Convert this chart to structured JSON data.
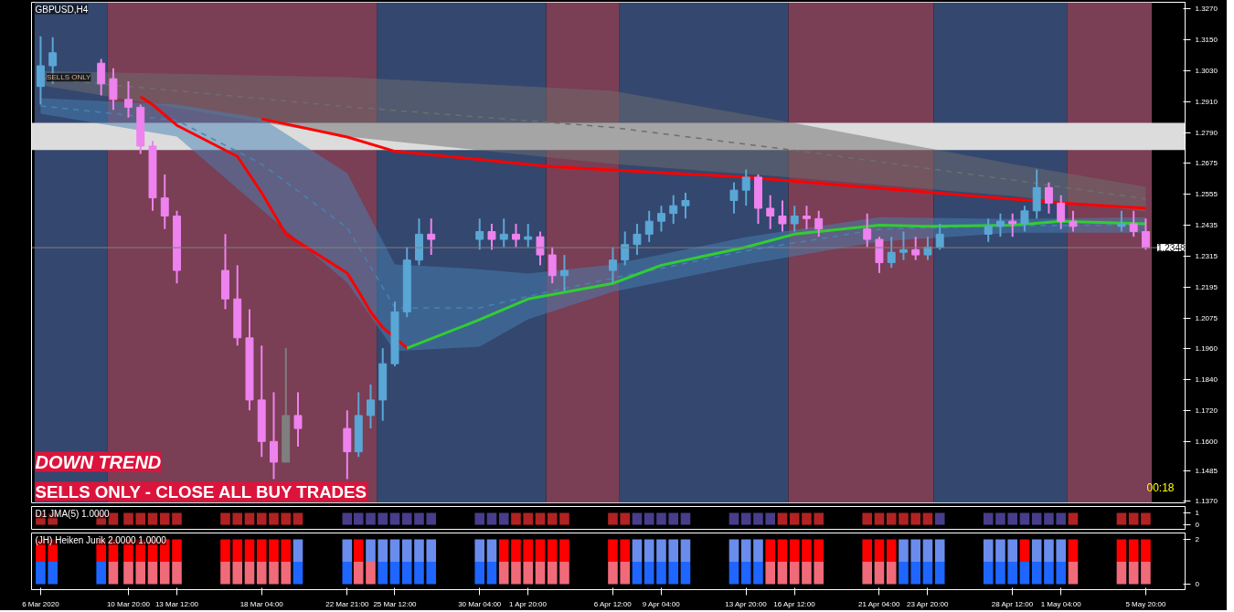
{
  "chart_data": [
    {
      "type": "candlestick",
      "title": "GBPUSD,H4",
      "x": [
        "2020-03-06T00:00",
        "2020-03-06T16:00",
        "2020-03-09T08:00",
        "2020-03-10T00:00",
        "2020-03-10T20:00",
        "2020-03-11T12:00",
        "2020-03-12T04:00",
        "2020-03-12T20:00",
        "2020-03-13T12:00",
        "2020-03-16T04:00",
        "2020-03-16T20:00",
        "2020-03-17T12:00",
        "2020-03-18T04:00",
        "2020-03-18T20:00",
        "2020-03-19T12:00",
        "2020-03-20T04:00",
        "2020-03-22T21:00",
        "2020-03-23T12:00",
        "2020-03-24T04:00",
        "2020-03-24T20:00",
        "2020-03-25T12:00",
        "2020-03-26T04:00",
        "2020-03-26T20:00",
        "2020-03-27T12:00",
        "2020-03-30T04:00",
        "2020-03-30T20:00",
        "2020-03-31T12:00",
        "2020-04-01T04:00",
        "2020-04-01T20:00",
        "2020-04-02T12:00",
        "2020-04-03T04:00",
        "2020-04-03T20:00",
        "2020-04-06T12:00",
        "2020-04-07T04:00",
        "2020-04-07T20:00",
        "2020-04-08T12:00",
        "2020-04-09T04:00",
        "2020-04-09T20:00",
        "2020-04-10T12:00",
        "2020-04-13T04:00",
        "2020-04-13T20:00",
        "2020-04-14T12:00",
        "2020-04-15T04:00",
        "2020-04-15T20:00",
        "2020-04-16T12:00",
        "2020-04-17T04:00",
        "2020-04-17T20:00",
        "2020-04-20T12:00",
        "2020-04-21T04:00",
        "2020-04-21T20:00",
        "2020-04-22T12:00",
        "2020-04-23T04:00",
        "2020-04-23T20:00",
        "2020-04-24T12:00",
        "2020-04-27T04:00",
        "2020-04-27T20:00",
        "2020-04-28T12:00",
        "2020-04-29T04:00",
        "2020-04-29T20:00",
        "2020-04-30T12:00",
        "2020-05-01T04:00",
        "2020-05-01T20:00",
        "2020-05-04T12:00",
        "2020-05-05T04:00",
        "2020-05-05T20:00"
      ],
      "ohlc": [
        [
          1.297,
          1.3164,
          1.29,
          1.305
        ],
        [
          1.305,
          1.316,
          1.298,
          1.31
        ],
        [
          1.306,
          1.3076,
          1.2935,
          1.298
        ],
        [
          1.3,
          1.304,
          1.288,
          1.292
        ],
        [
          1.292,
          1.299,
          1.285,
          1.289
        ],
        [
          1.289,
          1.29,
          1.271,
          1.274
        ],
        [
          1.274,
          1.276,
          1.249,
          1.254
        ],
        [
          1.254,
          1.263,
          1.242,
          1.247
        ],
        [
          1.247,
          1.249,
          1.221,
          1.226
        ],
        [
          1.226,
          1.24,
          1.211,
          1.215
        ],
        [
          1.215,
          1.228,
          1.197,
          1.2
        ],
        [
          1.2,
          1.211,
          1.172,
          1.176
        ],
        [
          1.176,
          1.197,
          1.154,
          1.16
        ],
        [
          1.16,
          1.179,
          1.1455,
          1.152
        ],
        [
          1.152,
          1.196,
          1.152,
          1.17
        ],
        [
          1.17,
          1.179,
          1.158,
          1.165
        ],
        [
          1.165,
          1.172,
          1.1455,
          1.156
        ],
        [
          1.156,
          1.179,
          1.154,
          1.17
        ],
        [
          1.17,
          1.182,
          1.165,
          1.176
        ],
        [
          1.176,
          1.196,
          1.168,
          1.19
        ],
        [
          1.19,
          1.214,
          1.189,
          1.21
        ],
        [
          1.21,
          1.235,
          1.208,
          1.23
        ],
        [
          1.23,
          1.246,
          1.228,
          1.24
        ],
        [
          1.24,
          1.246,
          1.232,
          1.238
        ],
        [
          1.238,
          1.246,
          1.234,
          1.241
        ],
        [
          1.241,
          1.244,
          1.234,
          1.238
        ],
        [
          1.238,
          1.246,
          1.235,
          1.24
        ],
        [
          1.24,
          1.244,
          1.235,
          1.238
        ],
        [
          1.238,
          1.244,
          1.235,
          1.239
        ],
        [
          1.239,
          1.241,
          1.228,
          1.232
        ],
        [
          1.232,
          1.235,
          1.221,
          1.224
        ],
        [
          1.224,
          1.232,
          1.218,
          1.226
        ],
        [
          1.226,
          1.235,
          1.221,
          1.23
        ],
        [
          1.23,
          1.241,
          1.228,
          1.236
        ],
        [
          1.236,
          1.244,
          1.232,
          1.24
        ],
        [
          1.24,
          1.249,
          1.237,
          1.245
        ],
        [
          1.245,
          1.251,
          1.241,
          1.248
        ],
        [
          1.248,
          1.255,
          1.244,
          1.251
        ],
        [
          1.251,
          1.256,
          1.246,
          1.253
        ],
        [
          1.253,
          1.26,
          1.248,
          1.257
        ],
        [
          1.257,
          1.265,
          1.251,
          1.262
        ],
        [
          1.262,
          1.263,
          1.244,
          1.25
        ],
        [
          1.25,
          1.255,
          1.242,
          1.247
        ],
        [
          1.247,
          1.253,
          1.241,
          1.244
        ],
        [
          1.244,
          1.251,
          1.241,
          1.247
        ],
        [
          1.247,
          1.251,
          1.242,
          1.246
        ],
        [
          1.246,
          1.249,
          1.239,
          1.242
        ],
        [
          1.242,
          1.248,
          1.235,
          1.238
        ],
        [
          1.238,
          1.239,
          1.225,
          1.229
        ],
        [
          1.229,
          1.239,
          1.227,
          1.233
        ],
        [
          1.233,
          1.241,
          1.23,
          1.234
        ],
        [
          1.234,
          1.239,
          1.23,
          1.232
        ],
        [
          1.232,
          1.239,
          1.23,
          1.235
        ],
        [
          1.235,
          1.244,
          1.234,
          1.24
        ],
        [
          1.24,
          1.246,
          1.237,
          1.243
        ],
        [
          1.243,
          1.248,
          1.239,
          1.245
        ],
        [
          1.245,
          1.248,
          1.239,
          1.244
        ],
        [
          1.244,
          1.251,
          1.241,
          1.249
        ],
        [
          1.249,
          1.265,
          1.246,
          1.258
        ],
        [
          1.258,
          1.26,
          1.248,
          1.252
        ],
        [
          1.252,
          1.255,
          1.242,
          1.245
        ],
        [
          1.245,
          1.249,
          1.241,
          1.243
        ],
        [
          1.243,
          1.249,
          1.241,
          1.244
        ],
        [
          1.244,
          1.249,
          1.239,
          1.241
        ],
        [
          1.241,
          1.246,
          1.234,
          1.2348
        ]
      ],
      "colors": [
        "#5aa7d6",
        "#5aa7d6",
        "#ee82ee",
        "#ee82ee",
        "#ee82ee",
        "#ee82ee",
        "#ee82ee",
        "#ee82ee",
        "#ee82ee",
        "#ee82ee",
        "#ee82ee",
        "#ee82ee",
        "#ee82ee",
        "#ee82ee",
        "#7f7f7f",
        "#ee82ee",
        "#ee82ee",
        "#5aa7d6",
        "#5aa7d6",
        "#5aa7d6",
        "#5aa7d6",
        "#5aa7d6",
        "#5aa7d6",
        "#ee82ee",
        "#5aa7d6",
        "#ee82ee",
        "#5aa7d6",
        "#ee82ee",
        "#5aa7d6",
        "#ee82ee",
        "#ee82ee",
        "#5aa7d6",
        "#5aa7d6",
        "#5aa7d6",
        "#5aa7d6",
        "#5aa7d6",
        "#5aa7d6",
        "#5aa7d6",
        "#5aa7d6",
        "#5aa7d6",
        "#5aa7d6",
        "#ee82ee",
        "#ee82ee",
        "#ee82ee",
        "#5aa7d6",
        "#ee82ee",
        "#ee82ee",
        "#ee82ee",
        "#ee82ee",
        "#5aa7d6",
        "#5aa7d6",
        "#ee82ee",
        "#5aa7d6",
        "#5aa7d6",
        "#5aa7d6",
        "#5aa7d6",
        "#ee82ee",
        "#5aa7d6",
        "#5aa7d6",
        "#ee82ee",
        "#ee82ee",
        "#ee82ee",
        "#5aa7d6",
        "#ee82ee",
        "#ee82ee"
      ],
      "series": [
        {
          "type": "line",
          "color": "#6e6e6e",
          "line_style": "dashed",
          "x": [
            "2020-03-06T00:00",
            "2020-03-22T21:00",
            "2020-04-06T12:00",
            "2020-04-16T12:00",
            "2020-04-28T12:00",
            "2020-05-05T20:00"
          ],
          "values": [
            1.3002,
            1.2892,
            1.2812,
            1.2724,
            1.2609,
            1.2536
          ],
          "lower": [
            1.2975,
            1.2777,
            1.2671,
            1.2618,
            1.2547,
            1.2488
          ],
          "upper": [
            1.303,
            1.3006,
            1.2953,
            1.2829,
            1.2671,
            1.2583
          ]
        },
        {
          "type": "line",
          "color": "#4682b4",
          "line_style": "dashed",
          "x": [
            "2020-03-06T00:00",
            "2020-03-13T12:00",
            "2020-03-18T04:00",
            "2020-03-22T21:00",
            "2020-03-25T12:00",
            "2020-03-30T04:00",
            "2020-04-01T20:00",
            "2020-04-06T12:00",
            "2020-04-13T20:00",
            "2020-04-21T04:00",
            "2020-04-28T12:00",
            "2020-05-05T20:00"
          ],
          "values": [
            1.2895,
            1.2839,
            1.2671,
            1.2425,
            1.2116,
            1.2116,
            1.216,
            1.223,
            1.2336,
            1.2419,
            1.2433,
            1.2436
          ],
          "lower": [
            1.2865,
            1.2777,
            1.2495,
            1.2213,
            1.1948,
            1.1966,
            1.2072,
            1.2177,
            1.2283,
            1.2371,
            1.2406,
            1.2406
          ],
          "upper": [
            1.2925,
            1.29,
            1.2847,
            1.2636,
            1.2283,
            1.2265,
            1.2248,
            1.2283,
            1.2389,
            1.2466,
            1.2459,
            1.2466
          ]
        },
        {
          "type": "line",
          "color": "#ff0000",
          "line_style": "solid",
          "x": [
            "2020-03-11T12:00",
            "2020-03-12T04:00",
            "2020-03-13T12:00",
            "2020-03-16T20:00",
            "2020-03-18T04:00",
            "2020-03-19T12:00",
            "2020-03-22T21:00",
            "2020-03-23T12:00",
            "2020-03-24T04:00",
            "2020-03-24T20:00",
            "2020-03-26T04:00"
          ],
          "values": [
            1.293,
            1.29,
            1.282,
            1.27,
            1.256,
            1.24,
            1.225,
            1.218,
            1.21,
            1.204,
            1.196
          ]
        },
        {
          "type": "line",
          "color": "#32cd32",
          "line_style": "solid",
          "x": [
            "2020-03-26T04:00",
            "2020-03-30T04:00",
            "2020-04-01T20:00",
            "2020-04-06T12:00",
            "2020-04-09T04:00",
            "2020-04-13T20:00",
            "2020-04-16T12:00",
            "2020-04-21T04:00",
            "2020-04-23T20:00",
            "2020-04-28T12:00",
            "2020-05-01T04:00",
            "2020-05-05T20:00"
          ],
          "values": [
            1.196,
            1.207,
            1.215,
            1.221,
            1.228,
            1.235,
            1.24,
            1.2435,
            1.243,
            1.2435,
            1.245,
            1.244
          ]
        },
        {
          "type": "line",
          "color": "#ff0000",
          "line_style": "solid",
          "x": [
            "2020-03-18T04:00",
            "2020-03-22T21:00",
            "2020-03-25T12:00",
            "2020-04-03T04:00",
            "2020-04-13T20:00",
            "2020-04-22T12:00",
            "2020-05-01T04:00",
            "2020-05-05T20:00"
          ],
          "values": [
            1.2845,
            1.2775,
            1.272,
            1.266,
            1.262,
            1.257,
            1.252,
            1.25
          ]
        }
      ],
      "xlim": [
        "2020-03-05T12:00",
        "2020-05-08T00:00"
      ],
      "ylim": [
        1.1363,
        1.3295
      ],
      "yticks": [
        {
          "value": 1.137,
          "label": "1.1370"
        },
        {
          "value": 1.1485,
          "label": "1.1485"
        },
        {
          "value": 1.16,
          "label": "1.1600"
        },
        {
          "value": 1.172,
          "label": "1.1720"
        },
        {
          "value": 1.184,
          "label": "1.1840"
        },
        {
          "value": 1.196,
          "label": "1.1960"
        },
        {
          "value": 1.2075,
          "label": "1.2075"
        },
        {
          "value": 1.2195,
          "label": "1.2195"
        },
        {
          "value": 1.2315,
          "label": "1.2315"
        },
        {
          "value": 1.2435,
          "label": "1.2435"
        },
        {
          "value": 1.2555,
          "label": "1.2555"
        },
        {
          "value": 1.2675,
          "label": "1.2675"
        },
        {
          "value": 1.279,
          "label": "1.2790"
        },
        {
          "value": 1.291,
          "label": "1.2910"
        },
        {
          "value": 1.303,
          "label": "1.3030"
        },
        {
          "value": 1.315,
          "label": "1.3150"
        },
        {
          "value": 1.327,
          "label": "1.3270"
        }
      ],
      "tick_labels": "y",
      "ref_lines": [
        {
          "axis": "y",
          "value": 1.2348,
          "label": "1.2348",
          "color": "#808080"
        }
      ],
      "bands": [
        {
          "axis": "x",
          "from": "2020-03-05T16:00",
          "to": "2020-03-09T16:00",
          "color": "#34476e"
        },
        {
          "axis": "x",
          "from": "2020-03-09T16:00",
          "to": "2020-03-24T12:00",
          "color": "#7a3e55"
        },
        {
          "axis": "x",
          "from": "2020-03-24T12:00",
          "to": "2020-04-02T20:00",
          "color": "#34476e"
        },
        {
          "axis": "x",
          "from": "2020-04-02T20:00",
          "to": "2020-04-06T20:00",
          "color": "#7a3e55"
        },
        {
          "axis": "x",
          "from": "2020-04-06T20:00",
          "to": "2020-04-16T04:00",
          "color": "#34476e"
        },
        {
          "axis": "x",
          "from": "2020-04-16T04:00",
          "to": "2020-04-24T04:00",
          "color": "#7a3e55"
        },
        {
          "axis": "x",
          "from": "2020-04-24T04:00",
          "to": "2020-05-01T12:00",
          "color": "#34476e"
        },
        {
          "axis": "x",
          "from": "2020-05-01T12:00",
          "to": "2020-05-06T04:00",
          "color": "#7a3e55"
        },
        {
          "axis": "y",
          "from": 1.2725,
          "to": 1.283,
          "color": "#dcdcdc"
        }
      ],
      "annotations": [
        "DOWN TREND",
        "SELLS ONLY - CLOSE ALL BUY TRADES",
        "00:18",
        {
          "text": "SELLS ONLY",
          "x": "2020-03-06T08:00",
          "y": 1.3005
        }
      ]
    },
    {
      "type": "bar",
      "title": "D1 JMA(5) 1.0000",
      "x": [
        "2020-03-06T00:00",
        "2020-03-06T16:00",
        "2020-03-09T08:00",
        "2020-03-10T00:00",
        "2020-03-10T20:00",
        "2020-03-11T12:00",
        "2020-03-12T04:00",
        "2020-03-12T20:00",
        "2020-03-13T12:00",
        "2020-03-16T04:00",
        "2020-03-16T20:00",
        "2020-03-17T12:00",
        "2020-03-18T04:00",
        "2020-03-18T20:00",
        "2020-03-19T12:00",
        "2020-03-20T04:00",
        "2020-03-22T21:00",
        "2020-03-23T12:00",
        "2020-03-24T04:00",
        "2020-03-24T20:00",
        "2020-03-25T12:00",
        "2020-03-26T04:00",
        "2020-03-26T20:00",
        "2020-03-27T12:00",
        "2020-03-30T04:00",
        "2020-03-30T20:00",
        "2020-03-31T12:00",
        "2020-04-01T04:00",
        "2020-04-01T20:00",
        "2020-04-02T12:00",
        "2020-04-03T04:00",
        "2020-04-03T20:00",
        "2020-04-06T12:00",
        "2020-04-07T04:00",
        "2020-04-07T20:00",
        "2020-04-08T12:00",
        "2020-04-09T04:00",
        "2020-04-09T20:00",
        "2020-04-10T12:00",
        "2020-04-13T04:00",
        "2020-04-13T20:00",
        "2020-04-14T12:00",
        "2020-04-15T04:00",
        "2020-04-15T20:00",
        "2020-04-16T12:00",
        "2020-04-17T04:00",
        "2020-04-17T20:00",
        "2020-04-20T12:00",
        "2020-04-21T04:00",
        "2020-04-21T20:00",
        "2020-04-22T12:00",
        "2020-04-23T04:00",
        "2020-04-23T20:00",
        "2020-04-24T12:00",
        "2020-04-27T04:00",
        "2020-04-27T20:00",
        "2020-04-28T12:00",
        "2020-04-29T04:00",
        "2020-04-29T20:00",
        "2020-04-30T12:00",
        "2020-05-01T04:00",
        "2020-05-01T20:00",
        "2020-05-04T12:00",
        "2020-05-05T04:00",
        "2020-05-05T20:00"
      ],
      "values": [
        1,
        1,
        1,
        1,
        1,
        1,
        1,
        1,
        1,
        1,
        1,
        1,
        1,
        1,
        1,
        1,
        1,
        1,
        1,
        1,
        1,
        1,
        1,
        1,
        1,
        1,
        1,
        1,
        1,
        1,
        1,
        1,
        1,
        1,
        1,
        1,
        1,
        1,
        1,
        1,
        1,
        1,
        1,
        1,
        1,
        1,
        1,
        1,
        1,
        1,
        1,
        1,
        1,
        1,
        1,
        1,
        1,
        1,
        1,
        1,
        1,
        1,
        1,
        1,
        1
      ],
      "colors": [
        "#b22222",
        "#b22222",
        "#b22222",
        "#b22222",
        "#b22222",
        "#b22222",
        "#b22222",
        "#b22222",
        "#b22222",
        "#b22222",
        "#b22222",
        "#b22222",
        "#b22222",
        "#b22222",
        "#b22222",
        "#b22222",
        "#483d8b",
        "#483d8b",
        "#483d8b",
        "#483d8b",
        "#483d8b",
        "#483d8b",
        "#483d8b",
        "#483d8b",
        "#483d8b",
        "#483d8b",
        "#483d8b",
        "#b22222",
        "#b22222",
        "#b22222",
        "#b22222",
        "#b22222",
        "#b22222",
        "#b22222",
        "#483d8b",
        "#483d8b",
        "#483d8b",
        "#483d8b",
        "#483d8b",
        "#483d8b",
        "#483d8b",
        "#483d8b",
        "#483d8b",
        "#b22222",
        "#b22222",
        "#b22222",
        "#b22222",
        "#b22222",
        "#b22222",
        "#b22222",
        "#b22222",
        "#b22222",
        "#b22222",
        "#483d8b",
        "#483d8b",
        "#483d8b",
        "#483d8b",
        "#483d8b",
        "#483d8b",
        "#483d8b",
        "#483d8b",
        "#b22222",
        "#b22222",
        "#b22222",
        "#b22222"
      ],
      "xlim": [
        "2020-03-05T12:00",
        "2020-05-08T00:00"
      ],
      "ylim": [
        -0.38,
        1.54
      ],
      "yticks": [
        0,
        1
      ],
      "tick_labels": "y"
    },
    {
      "type": "bar",
      "stacked": true,
      "title": "(JH) Heiken Jurik 2.0000 1.0000",
      "x": [
        "2020-03-06T00:00",
        "2020-03-06T16:00",
        "2020-03-09T08:00",
        "2020-03-10T00:00",
        "2020-03-10T20:00",
        "2020-03-11T12:00",
        "2020-03-12T04:00",
        "2020-03-12T20:00",
        "2020-03-13T12:00",
        "2020-03-16T04:00",
        "2020-03-16T20:00",
        "2020-03-17T12:00",
        "2020-03-18T04:00",
        "2020-03-18T20:00",
        "2020-03-19T12:00",
        "2020-03-20T04:00",
        "2020-03-22T21:00",
        "2020-03-23T12:00",
        "2020-03-24T04:00",
        "2020-03-24T20:00",
        "2020-03-25T12:00",
        "2020-03-26T04:00",
        "2020-03-26T20:00",
        "2020-03-27T12:00",
        "2020-03-30T04:00",
        "2020-03-30T20:00",
        "2020-03-31T12:00",
        "2020-04-01T04:00",
        "2020-04-01T20:00",
        "2020-04-02T12:00",
        "2020-04-03T04:00",
        "2020-04-03T20:00",
        "2020-04-06T12:00",
        "2020-04-07T04:00",
        "2020-04-07T20:00",
        "2020-04-08T12:00",
        "2020-04-09T04:00",
        "2020-04-09T20:00",
        "2020-04-10T12:00",
        "2020-04-13T04:00",
        "2020-04-13T20:00",
        "2020-04-14T12:00",
        "2020-04-15T04:00",
        "2020-04-15T20:00",
        "2020-04-16T12:00",
        "2020-04-17T04:00",
        "2020-04-17T20:00",
        "2020-04-20T12:00",
        "2020-04-21T04:00",
        "2020-04-21T20:00",
        "2020-04-22T12:00",
        "2020-04-23T04:00",
        "2020-04-23T20:00",
        "2020-04-24T12:00",
        "2020-04-27T04:00",
        "2020-04-27T20:00",
        "2020-04-28T12:00",
        "2020-04-29T04:00",
        "2020-04-29T20:00",
        "2020-04-30T12:00",
        "2020-05-01T04:00",
        "2020-05-01T20:00",
        "2020-05-04T12:00",
        "2020-05-05T04:00",
        "2020-05-05T20:00"
      ],
      "series": [
        {
          "values": [
            1,
            1,
            1,
            1,
            1,
            1,
            1,
            1,
            1,
            1,
            1,
            1,
            1,
            1,
            1,
            1,
            1,
            1,
            1,
            1,
            1,
            1,
            1,
            1,
            1,
            1,
            1,
            1,
            1,
            1,
            1,
            1,
            1,
            1,
            1,
            1,
            1,
            1,
            1,
            1,
            1,
            1,
            1,
            1,
            1,
            1,
            1,
            1,
            1,
            1,
            1,
            1,
            1,
            1,
            1,
            1,
            1,
            1,
            1,
            1,
            1,
            1,
            1,
            1,
            1
          ],
          "colors": [
            "#1e66ff",
            "#1e66ff",
            "#1e66ff",
            "#f06a7a",
            "#f06a7a",
            "#f06a7a",
            "#f06a7a",
            "#f06a7a",
            "#f06a7a",
            "#f06a7a",
            "#f06a7a",
            "#f06a7a",
            "#f06a7a",
            "#f06a7a",
            "#f06a7a",
            "#1e66ff",
            "#1e66ff",
            "#f06a7a",
            "#f06a7a",
            "#1e66ff",
            "#1e66ff",
            "#1e66ff",
            "#1e66ff",
            "#1e66ff",
            "#1e66ff",
            "#1e66ff",
            "#f06a7a",
            "#f06a7a",
            "#f06a7a",
            "#f06a7a",
            "#f06a7a",
            "#f06a7a",
            "#f06a7a",
            "#f06a7a",
            "#1e66ff",
            "#1e66ff",
            "#1e66ff",
            "#1e66ff",
            "#1e66ff",
            "#1e66ff",
            "#1e66ff",
            "#1e66ff",
            "#f06a7a",
            "#f06a7a",
            "#f06a7a",
            "#f06a7a",
            "#f06a7a",
            "#f06a7a",
            "#f06a7a",
            "#f06a7a",
            "#1e66ff",
            "#1e66ff",
            "#1e66ff",
            "#1e66ff",
            "#1e66ff",
            "#1e66ff",
            "#1e66ff",
            "#1e66ff",
            "#1e66ff",
            "#1e66ff",
            "#1e66ff",
            "#f06a7a",
            "#f06a7a",
            "#f06a7a",
            "#f06a7a"
          ]
        },
        {
          "values": [
            1,
            1,
            1,
            1,
            1,
            1,
            1,
            1,
            1,
            1,
            1,
            1,
            1,
            1,
            1,
            1,
            1,
            1,
            1,
            1,
            1,
            1,
            1,
            1,
            1,
            1,
            1,
            1,
            1,
            1,
            1,
            1,
            1,
            1,
            1,
            1,
            1,
            1,
            1,
            1,
            1,
            1,
            1,
            1,
            1,
            1,
            1,
            1,
            1,
            1,
            1,
            1,
            1,
            1,
            1,
            1,
            1,
            1,
            1,
            1,
            1,
            1,
            1,
            1,
            1
          ],
          "colors": [
            "#ff0000",
            "#ff0000",
            "#ff0000",
            "#ff0000",
            "#ff0000",
            "#ff0000",
            "#ff0000",
            "#ff0000",
            "#ff0000",
            "#ff0000",
            "#ff0000",
            "#ff0000",
            "#ff0000",
            "#ff0000",
            "#ff0000",
            "#6a8cec",
            "#6a8cec",
            "#ff0000",
            "#6a8cec",
            "#6a8cec",
            "#6a8cec",
            "#6a8cec",
            "#6a8cec",
            "#6a8cec",
            "#6a8cec",
            "#6a8cec",
            "#ff0000",
            "#ff0000",
            "#ff0000",
            "#ff0000",
            "#ff0000",
            "#ff0000",
            "#ff0000",
            "#ff0000",
            "#6a8cec",
            "#6a8cec",
            "#6a8cec",
            "#6a8cec",
            "#6a8cec",
            "#6a8cec",
            "#6a8cec",
            "#6a8cec",
            "#ff0000",
            "#ff0000",
            "#ff0000",
            "#ff0000",
            "#ff0000",
            "#ff0000",
            "#ff0000",
            "#ff0000",
            "#6a8cec",
            "#6a8cec",
            "#6a8cec",
            "#6a8cec",
            "#6a8cec",
            "#6a8cec",
            "#6a8cec",
            "#ff0000",
            "#6a8cec",
            "#6a8cec",
            "#6a8cec",
            "#ff0000",
            "#ff0000",
            "#ff0000",
            "#ff0000"
          ]
        }
      ],
      "xlim": [
        "2020-03-05T12:00",
        "2020-05-08T00:00"
      ],
      "ylim": [
        -0.24,
        2.28
      ],
      "yticks": [
        0,
        2
      ],
      "xticks": [
        {
          "value": "2020-03-06T00:00",
          "label": "6 Mar 2020"
        },
        {
          "value": "2020-03-10T20:00",
          "label": "10 Mar 20:00"
        },
        {
          "value": "2020-03-13T12:00",
          "label": "13 Mar 12:00"
        },
        {
          "value": "2020-03-18T04:00",
          "label": "18 Mar 04:00"
        },
        {
          "value": "2020-03-22T21:00",
          "label": "22 Mar 21:00"
        },
        {
          "value": "2020-03-25T12:00",
          "label": "25 Mar 12:00"
        },
        {
          "value": "2020-03-30T04:00",
          "label": "30 Mar 04:00"
        },
        {
          "value": "2020-04-01T20:00",
          "label": "1 Apr 20:00"
        },
        {
          "value": "2020-04-06T12:00",
          "label": "6 Apr 12:00"
        },
        {
          "value": "2020-04-09T04:00",
          "label": "9 Apr 04:00"
        },
        {
          "value": "2020-04-13T20:00",
          "label": "13 Apr 20:00"
        },
        {
          "value": "2020-04-16T12:00",
          "label": "16 Apr 12:00"
        },
        {
          "value": "2020-04-21T04:00",
          "label": "21 Apr 04:00"
        },
        {
          "value": "2020-04-23T20:00",
          "label": "23 Apr 20:00"
        },
        {
          "value": "2020-04-28T12:00",
          "label": "28 Apr 12:00"
        },
        {
          "value": "2020-05-01T04:00",
          "label": "1 May 04:00"
        },
        {
          "value": "2020-05-05T20:00",
          "label": "5 May 20:00"
        }
      ]
    }
  ]
}
